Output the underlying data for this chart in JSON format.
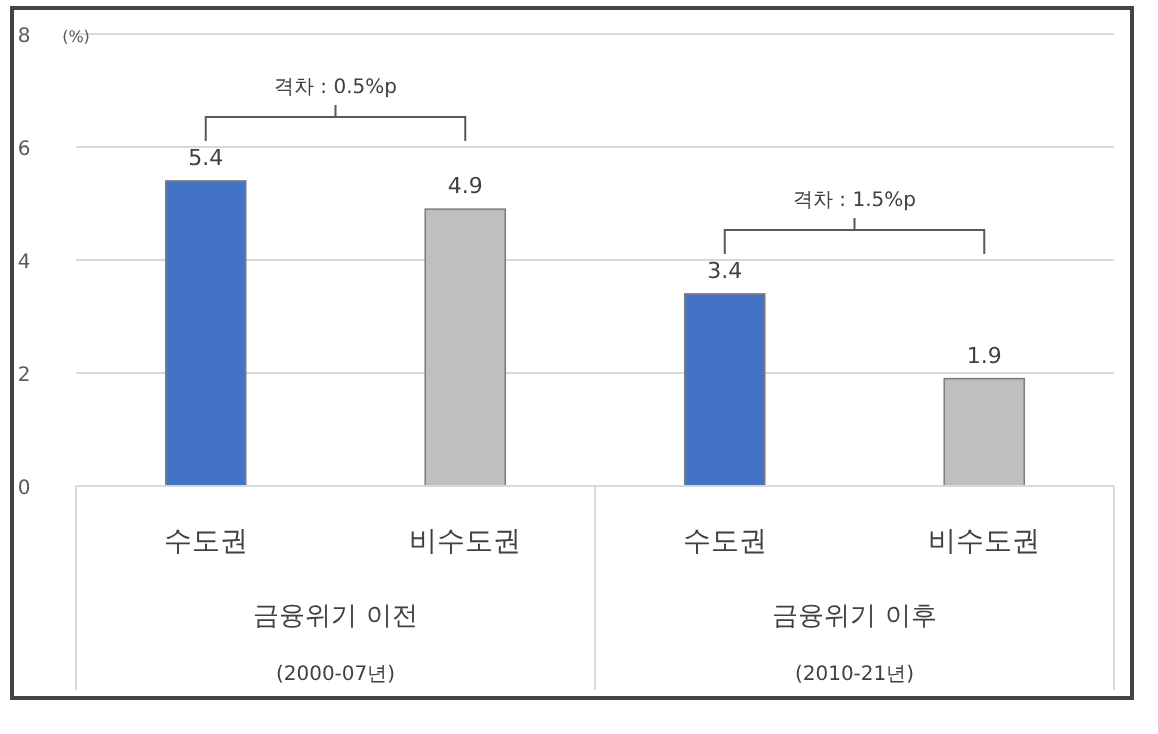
{
  "chart_data": {
    "type": "bar",
    "ylabel": "(%)",
    "categories": [
      "수도권",
      "비수도권",
      "수도권",
      "비수도권"
    ],
    "values": [
      5.4,
      4.9,
      3.4,
      1.9
    ],
    "colors": [
      "#4472c4",
      "#bfbfbf",
      "#4472c4",
      "#bfbfbf"
    ],
    "ylim": [
      0,
      8
    ],
    "yticks": [
      0,
      2,
      4,
      6,
      8
    ],
    "grid": "y",
    "data_labels": true,
    "annotations": [
      "격차 : 0.5%p",
      "격차 : 1.5%p",
      "금융위기 이전",
      "(2000-07년)",
      "금융위기 이후",
      "(2010-21년)"
    ]
  }
}
